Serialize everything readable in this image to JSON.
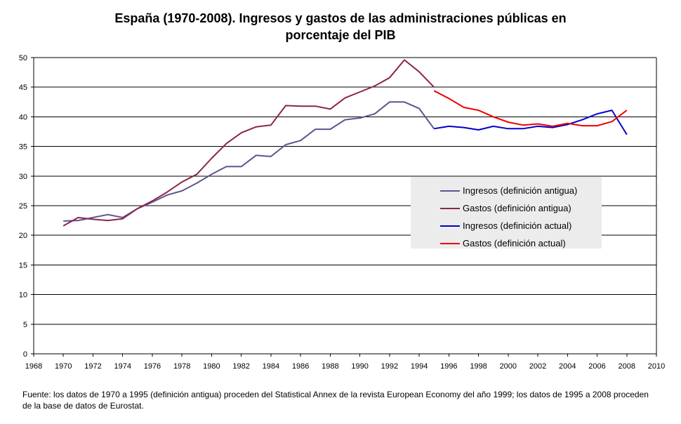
{
  "chart_data": {
    "type": "line",
    "title": "España (1970-2008). Ingresos y gastos de las administraciones públicas en porcentaje del PIB",
    "title_lines": [
      "España (1970-2008). Ingresos y gastos de las administraciones públicas en",
      "porcentaje del PIB"
    ],
    "xlabel": "",
    "ylabel": "",
    "xlim": [
      1968,
      2010
    ],
    "ylim": [
      0,
      50
    ],
    "xticks": [
      1968,
      1970,
      1972,
      1974,
      1976,
      1978,
      1980,
      1982,
      1984,
      1986,
      1988,
      1990,
      1992,
      1994,
      1996,
      1998,
      2000,
      2002,
      2004,
      2006,
      2008,
      2010
    ],
    "yticks": [
      0,
      5,
      10,
      15,
      20,
      25,
      30,
      35,
      40,
      45,
      50
    ],
    "grid": "horizontal",
    "legend_position": "center-right",
    "series": [
      {
        "name": "Ingresos (definición antigua)",
        "color": "#5b5590",
        "x": [
          1970,
          1971,
          1972,
          1973,
          1974,
          1975,
          1976,
          1977,
          1978,
          1979,
          1980,
          1981,
          1982,
          1983,
          1984,
          1985,
          1986,
          1987,
          1988,
          1989,
          1990,
          1991,
          1992,
          1993,
          1994,
          1995
        ],
        "values": [
          22.4,
          22.5,
          23.0,
          23.5,
          23.0,
          24.5,
          25.6,
          26.8,
          27.5,
          28.8,
          30.3,
          31.6,
          31.6,
          33.5,
          33.3,
          35.3,
          36.0,
          37.9,
          37.9,
          39.5,
          39.8,
          40.5,
          42.5,
          42.5,
          41.4,
          38.0
        ]
      },
      {
        "name": "Gastos (definición antigua)",
        "color": "#8b2550",
        "x": [
          1970,
          1971,
          1972,
          1973,
          1974,
          1975,
          1976,
          1977,
          1978,
          1979,
          1980,
          1981,
          1982,
          1983,
          1984,
          1985,
          1986,
          1987,
          1988,
          1989,
          1990,
          1991,
          1992,
          1993,
          1994,
          1995
        ],
        "values": [
          21.6,
          23.0,
          22.7,
          22.5,
          22.8,
          24.5,
          25.8,
          27.3,
          29.0,
          30.3,
          33.0,
          35.5,
          37.3,
          38.3,
          38.6,
          41.9,
          41.8,
          41.8,
          41.3,
          43.2,
          44.2,
          45.2,
          46.6,
          49.6,
          47.6,
          45.0
        ]
      },
      {
        "name": "Ingresos (definición actual)",
        "color": "#0000cc",
        "x": [
          1995,
          1996,
          1997,
          1998,
          1999,
          2000,
          2001,
          2002,
          2003,
          2004,
          2005,
          2006,
          2007,
          2008
        ],
        "values": [
          38.0,
          38.4,
          38.2,
          37.8,
          38.4,
          38.0,
          38.0,
          38.4,
          38.2,
          38.7,
          39.5,
          40.5,
          41.1,
          37.0
        ]
      },
      {
        "name": "Gastos (definición actual)",
        "color": "#ee0000",
        "x": [
          1995,
          1996,
          1997,
          1998,
          1999,
          2000,
          2001,
          2002,
          2003,
          2004,
          2005,
          2006,
          2007,
          2008
        ],
        "values": [
          44.4,
          43.1,
          41.6,
          41.1,
          40.0,
          39.1,
          38.6,
          38.8,
          38.4,
          38.9,
          38.5,
          38.5,
          39.2,
          41.1
        ]
      }
    ]
  },
  "footnote": "Fuente: los datos de 1970 a 1995 (definición antigua) proceden del Statistical Annex de la revista European Economy del año 1999; los datos de 1995 a 2008 proceden de la base de datos de Eurostat."
}
